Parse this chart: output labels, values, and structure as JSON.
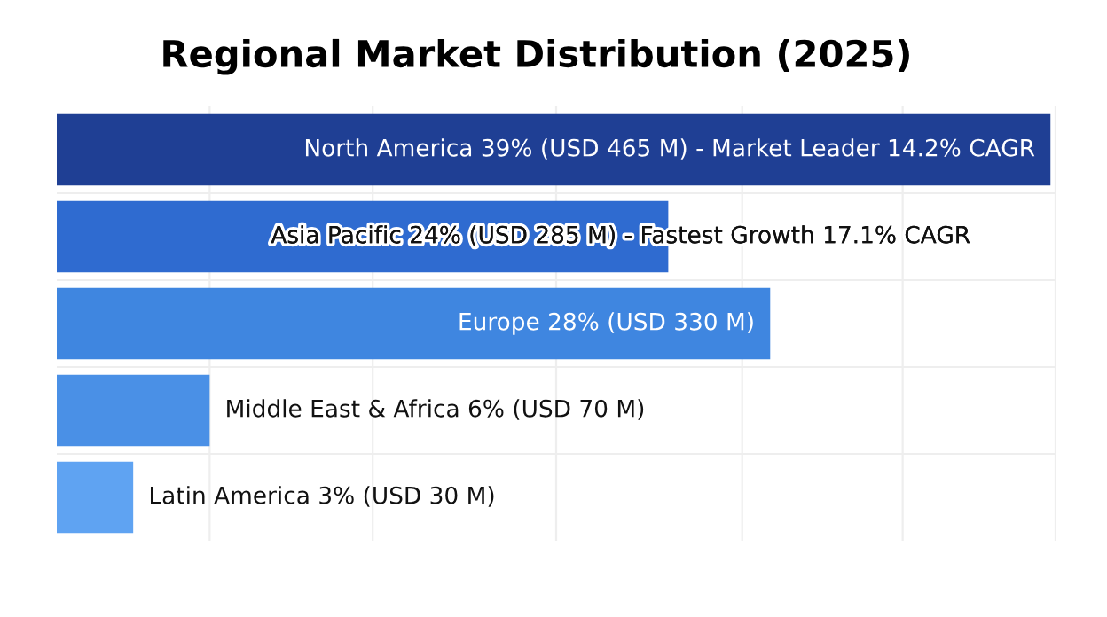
{
  "chart_data": {
    "type": "bar",
    "orientation": "horizontal",
    "title": "Regional Market Distribution (2025)",
    "categories": [
      null,
      null,
      null,
      null,
      null
    ],
    "values": [
      39,
      24,
      28,
      6,
      3
    ],
    "colors": [
      "#1f3f94",
      "#2f6bd0",
      "#3f86e0",
      "#4a90e6",
      "#5fa3f2"
    ],
    "value_labels": [
      "North America 39% (USD 465 M) - Market Leader 14.2% CAGR",
      "Asia Pacific 24% (USD 285 M) - Fastest Growth 17.1% CAGR",
      "Europe 28% (USD 330 M)",
      "Middle East & Africa 6% (USD 70 M)",
      "Latin America 3% (USD 30 M)"
    ],
    "xlim": [
      0,
      39.2
    ],
    "xticks": [
      {
        "value": 6,
        "label": null
      },
      {
        "value": 12.4,
        "label": null
      },
      {
        "value": 19.6,
        "label": null
      },
      {
        "value": 26.9,
        "label": null
      },
      {
        "value": 33.2,
        "label": null
      },
      {
        "value": 39.2,
        "label": null
      }
    ],
    "grid": true
  }
}
